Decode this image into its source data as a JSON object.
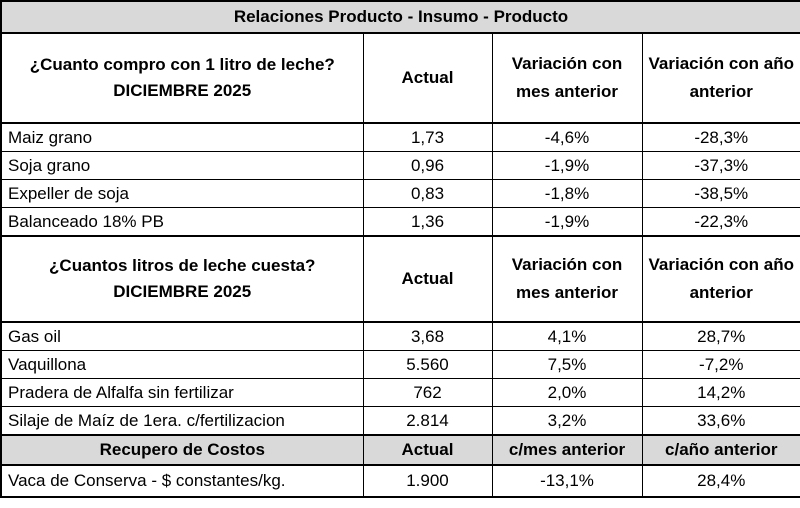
{
  "title": "Relaciones Producto - Insumo - Producto",
  "section1": {
    "question_line1": "¿Cuanto compro con 1 litro de leche?",
    "question_line2": "DICIEMBRE 2025",
    "col_actual": "Actual",
    "col_var_mes": "Variación con mes anterior",
    "col_var_anio": "Variación con año anterior",
    "rows": [
      {
        "label": "Maiz grano",
        "actual": "1,73",
        "var_mes": "-4,6%",
        "var_anio": "-28,3%"
      },
      {
        "label": "Soja grano",
        "actual": "0,96",
        "var_mes": "-1,9%",
        "var_anio": "-37,3%"
      },
      {
        "label": "Expeller de soja",
        "actual": "0,83",
        "var_mes": "-1,8%",
        "var_anio": "-38,5%"
      },
      {
        "label": "Balanceado 18% PB",
        "actual": "1,36",
        "var_mes": "-1,9%",
        "var_anio": "-22,3%"
      }
    ]
  },
  "section2": {
    "question_line1": "¿Cuantos litros de leche cuesta?",
    "question_line2": "DICIEMBRE 2025",
    "col_actual": "Actual",
    "col_var_mes": "Variación con mes anterior",
    "col_var_anio": "Variación con año anterior",
    "rows": [
      {
        "label": "Gas oil",
        "actual": "3,68",
        "var_mes": "4,1%",
        "var_anio": "28,7%"
      },
      {
        "label": "Vaquillona",
        "actual": "5.560",
        "var_mes": "7,5%",
        "var_anio": "-7,2%"
      },
      {
        "label": "Pradera de Alfalfa sin fertilizar",
        "actual": "762",
        "var_mes": "2,0%",
        "var_anio": "14,2%"
      },
      {
        "label": "Silaje de Maíz de 1era. c/fertilizacion",
        "actual": "2.814",
        "var_mes": "3,2%",
        "var_anio": "33,6%"
      }
    ]
  },
  "section3": {
    "header_label": "Recupero de Costos",
    "col_actual": "Actual",
    "col_var_mes": "c/mes anterior",
    "col_var_anio": "c/año anterior",
    "rows": [
      {
        "label": "Vaca de Conserva - $ constantes/kg.",
        "actual": "1.900",
        "var_mes": "-13,1%",
        "var_anio": "28,4%"
      }
    ]
  }
}
